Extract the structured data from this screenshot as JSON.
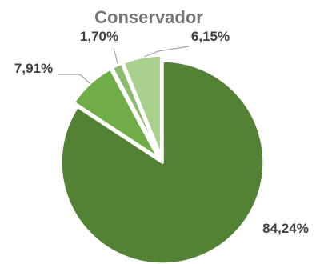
{
  "chart_data": {
    "type": "pie",
    "title": "Conservador",
    "slices": [
      {
        "value": 84.24,
        "label": "84,24%",
        "color": "#548235"
      },
      {
        "value": 7.91,
        "label": "7,91%",
        "color": "#70AD47"
      },
      {
        "value": 1.7,
        "label": "1,70%",
        "color": "#8DBA6C"
      },
      {
        "value": 6.15,
        "label": "6,15%",
        "color": "#A9D18E"
      }
    ],
    "start_angle_deg": 0,
    "direction": "clockwise",
    "legend": "none"
  }
}
